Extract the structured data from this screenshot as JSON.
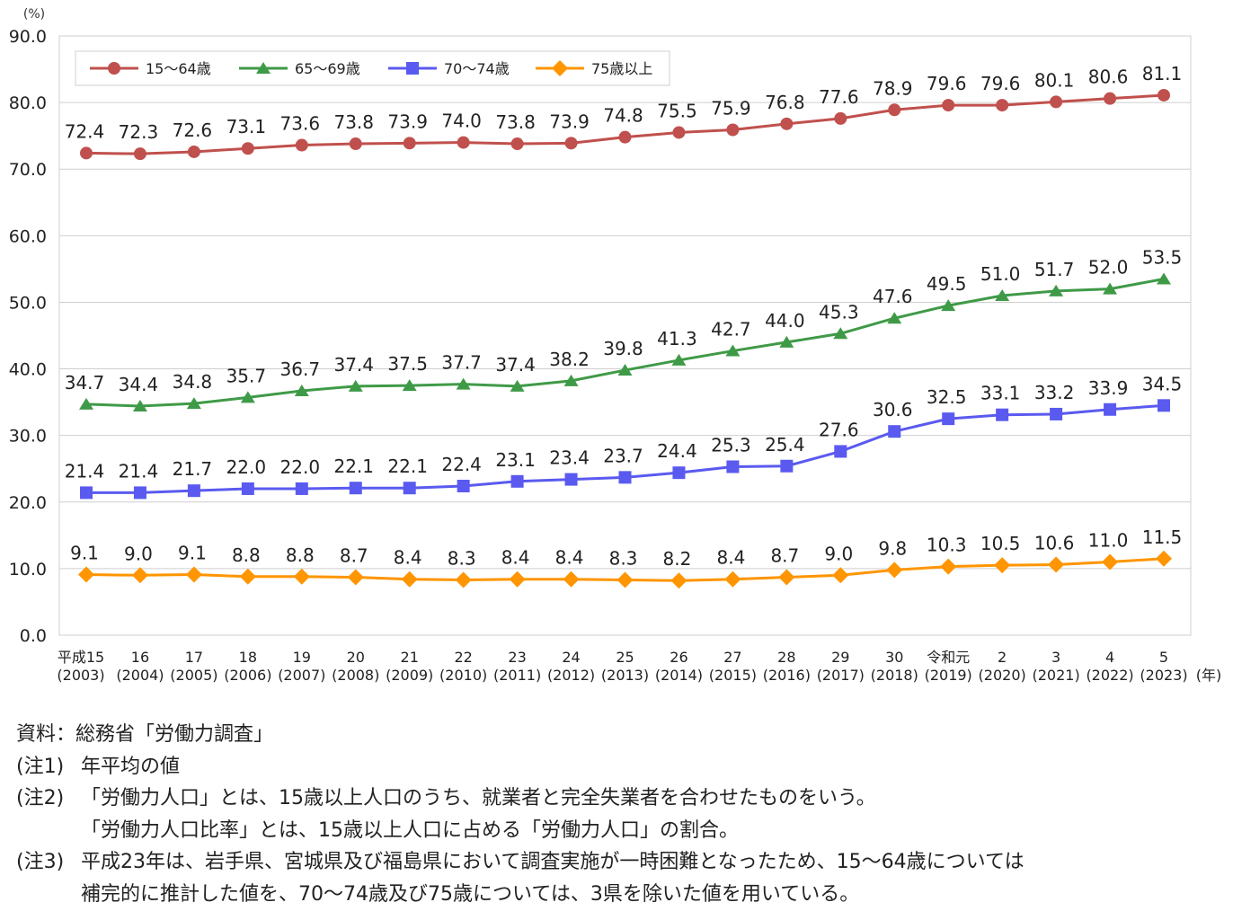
{
  "chart_data": {
    "type": "line",
    "y_unit_label": "(%)",
    "x_unit_label": "(年)",
    "ylim": [
      0,
      90
    ],
    "yticks": [
      "0.0",
      "10.0",
      "20.0",
      "30.0",
      "40.0",
      "50.0",
      "60.0",
      "70.0",
      "80.0",
      "90.0"
    ],
    "grid": true,
    "legend_position": "top-left",
    "categories": [
      [
        "平成15",
        "(2003)"
      ],
      [
        "16",
        "(2004)"
      ],
      [
        "17",
        "(2005)"
      ],
      [
        "18",
        "(2006)"
      ],
      [
        "19",
        "(2007)"
      ],
      [
        "20",
        "(2008)"
      ],
      [
        "21",
        "(2009)"
      ],
      [
        "22",
        "(2010)"
      ],
      [
        "23",
        "(2011)"
      ],
      [
        "24",
        "(2012)"
      ],
      [
        "25",
        "(2013)"
      ],
      [
        "26",
        "(2014)"
      ],
      [
        "27",
        "(2015)"
      ],
      [
        "28",
        "(2016)"
      ],
      [
        "29",
        "(2017)"
      ],
      [
        "30",
        "(2018)"
      ],
      [
        "令和元",
        "(2019)"
      ],
      [
        "2",
        "(2020)"
      ],
      [
        "3",
        "(2021)"
      ],
      [
        "4",
        "(2022)"
      ],
      [
        "5",
        "(2023)"
      ]
    ],
    "series": [
      {
        "name": "15〜64歳",
        "color": "#c0504d",
        "marker": "circle",
        "values": [
          72.4,
          72.3,
          72.6,
          73.1,
          73.6,
          73.8,
          73.9,
          74.0,
          73.8,
          73.9,
          74.8,
          75.5,
          75.9,
          76.8,
          77.6,
          78.9,
          79.6,
          79.6,
          80.1,
          80.6,
          81.1
        ]
      },
      {
        "name": "65〜69歳",
        "color": "#3f9a47",
        "marker": "triangle",
        "values": [
          34.7,
          34.4,
          34.8,
          35.7,
          36.7,
          37.4,
          37.5,
          37.7,
          37.4,
          38.2,
          39.8,
          41.3,
          42.7,
          44.0,
          45.3,
          47.6,
          49.5,
          51.0,
          51.7,
          52.0,
          53.5
        ]
      },
      {
        "name": "70〜74歳",
        "color": "#5a5af0",
        "marker": "square",
        "values": [
          21.4,
          21.4,
          21.7,
          22.0,
          22.0,
          22.1,
          22.1,
          22.4,
          23.1,
          23.4,
          23.7,
          24.4,
          25.3,
          25.4,
          27.6,
          30.6,
          32.5,
          33.1,
          33.2,
          33.9,
          34.5
        ]
      },
      {
        "name": "75歳以上",
        "color": "#ff9500",
        "marker": "diamond",
        "values": [
          9.1,
          9.0,
          9.1,
          8.8,
          8.8,
          8.7,
          8.4,
          8.3,
          8.4,
          8.4,
          8.3,
          8.2,
          8.4,
          8.7,
          9.0,
          9.8,
          10.3,
          10.5,
          10.6,
          11.0,
          11.5
        ]
      }
    ]
  },
  "notes": {
    "source": "資料：総務省「労働力調査」",
    "note1_tag": "(注1)",
    "note1": "年平均の値",
    "note2_tag": "(注2)",
    "note2_line1": "「労働力人口」とは、15歳以上人口のうち、就業者と完全失業者を合わせたものをいう。",
    "note2_line2": "「労働力人口比率」とは、15歳以上人口に占める「労働力人口」の割合。",
    "note3_tag": "(注3)",
    "note3_line1": "平成23年は、岩手県、宮城県及び福島県において調査実施が一時困難となったため、15〜64歳については",
    "note3_line2": "補完的に推計した値を、70〜74歳及び75歳については、3県を除いた値を用いている。"
  }
}
